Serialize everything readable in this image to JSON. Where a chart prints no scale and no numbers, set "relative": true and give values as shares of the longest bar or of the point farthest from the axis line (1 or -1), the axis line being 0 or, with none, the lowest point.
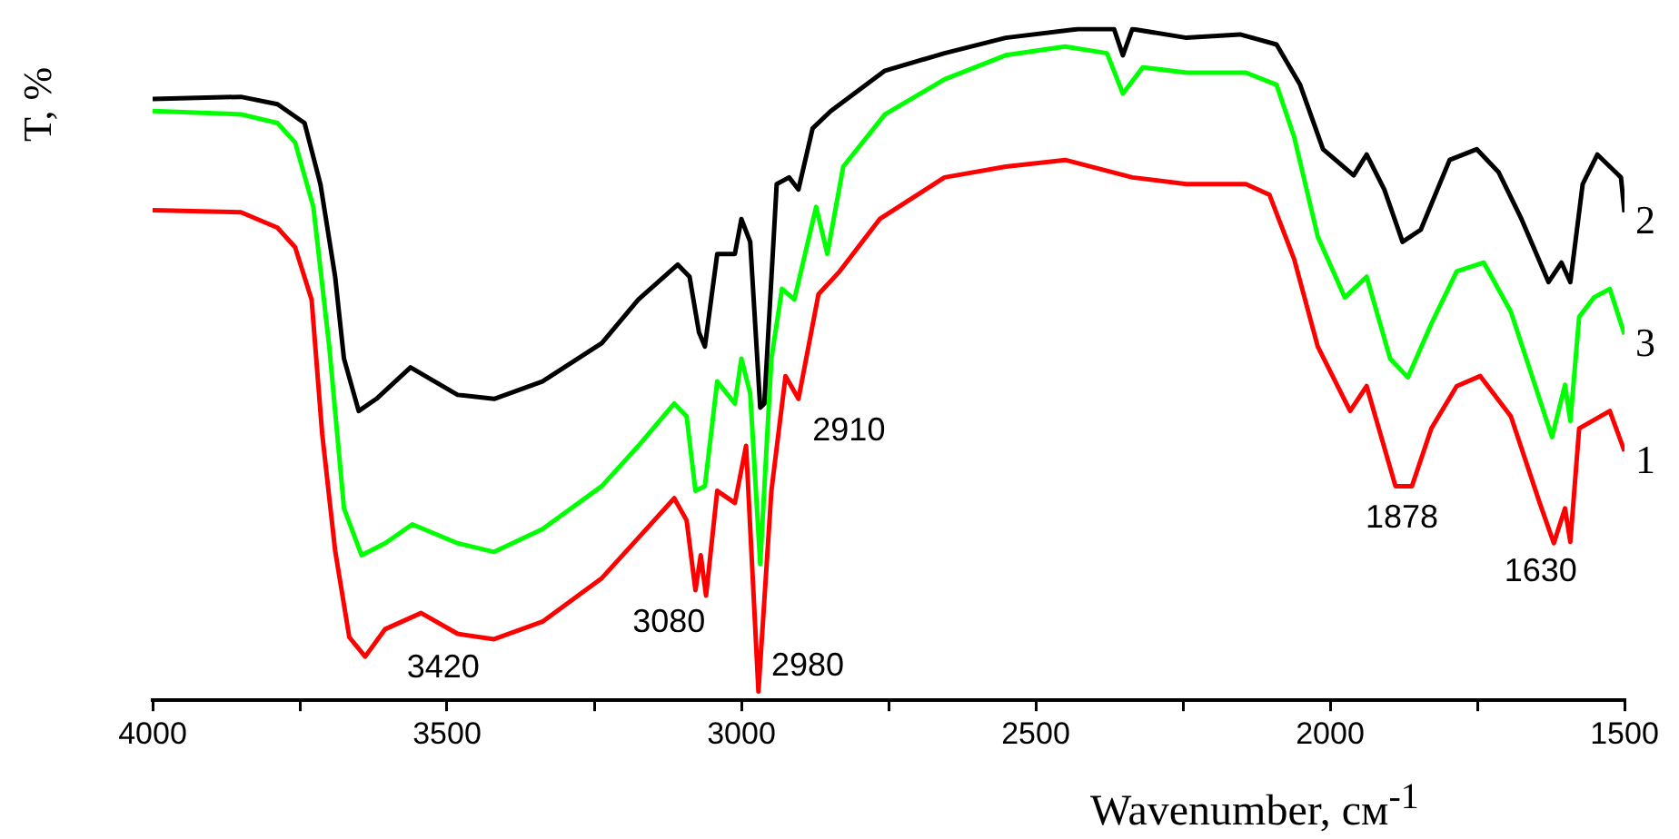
{
  "chart_data": {
    "type": "line",
    "relative": true,
    "xlabel": "Wavenumber, см$^{-1}$",
    "ylabel": "T, %",
    "xlim": [
      4000,
      1500
    ],
    "xticks": [
      4000,
      {
        "value": 3750,
        "label": null
      },
      3500,
      {
        "value": 3250,
        "label": null
      },
      3000,
      {
        "value": 2750,
        "label": null
      },
      2500,
      {
        "value": 2250,
        "label": null
      },
      2000,
      {
        "value": 1750,
        "label": null
      },
      1500
    ],
    "grid": false,
    "legend": false,
    "marker": "none",
    "line_style": "solid",
    "series": [
      {
        "name": "1",
        "color": "#ff0000",
        "x": [
          4000,
          3850,
          3788,
          3758,
          3730,
          3712,
          3690,
          3666,
          3639,
          3605,
          3544,
          3482,
          3420,
          3338,
          3237,
          3175,
          3114,
          3093,
          3078,
          3069,
          3060,
          3041,
          3011,
          2992,
          2971,
          2949,
          2925,
          2903,
          2869,
          2833,
          2765,
          2655,
          2551,
          2450,
          2336,
          2244,
          2143,
          2103,
          2061,
          2021,
          1966,
          1938,
          1889,
          1861,
          1828,
          1785,
          1745,
          1693,
          1644,
          1620,
          1601,
          1592,
          1577,
          1525,
          1500
        ],
        "values": [
          0.73,
          0.727,
          0.704,
          0.675,
          0.597,
          0.397,
          0.223,
          0.094,
          0.065,
          0.106,
          0.13,
          0.099,
          0.091,
          0.117,
          0.182,
          0.242,
          0.301,
          0.268,
          0.164,
          0.216,
          0.156,
          0.312,
          0.294,
          0.379,
          0.013,
          0.312,
          0.483,
          0.449,
          0.605,
          0.639,
          0.717,
          0.779,
          0.795,
          0.805,
          0.779,
          0.769,
          0.769,
          0.753,
          0.657,
          0.527,
          0.431,
          0.468,
          0.319,
          0.319,
          0.405,
          0.468,
          0.483,
          0.423,
          0.294,
          0.234,
          0.286,
          0.236,
          0.405,
          0.431,
          0.371
        ]
      },
      {
        "name": "2",
        "color": "#000000",
        "x": [
          4000,
          3850,
          3788,
          3742,
          3715,
          3690,
          3675,
          3650,
          3620,
          3562,
          3482,
          3420,
          3338,
          3237,
          3175,
          3108,
          3088,
          3072,
          3062,
          3041,
          3011,
          3000,
          2985,
          2968,
          2961,
          2940,
          2919,
          2903,
          2879,
          2848,
          2756,
          2655,
          2551,
          2428,
          2367,
          2352,
          2336,
          2244,
          2153,
          2091,
          2051,
          2012,
          1960,
          1938,
          1908,
          1877,
          1846,
          1797,
          1751,
          1714,
          1675,
          1629,
          1607,
          1592,
          1571,
          1546,
          1506,
          1500
        ],
        "values": [
          0.896,
          0.899,
          0.888,
          0.86,
          0.769,
          0.631,
          0.509,
          0.431,
          0.449,
          0.496,
          0.455,
          0.449,
          0.475,
          0.532,
          0.597,
          0.649,
          0.631,
          0.548,
          0.527,
          0.665,
          0.665,
          0.717,
          0.683,
          0.436,
          0.442,
          0.769,
          0.779,
          0.761,
          0.852,
          0.878,
          0.938,
          0.964,
          0.987,
          1,
          1,
          0.961,
          1,
          0.987,
          0.992,
          0.977,
          0.917,
          0.821,
          0.782,
          0.813,
          0.761,
          0.683,
          0.701,
          0.805,
          0.821,
          0.787,
          0.717,
          0.623,
          0.652,
          0.623,
          0.769,
          0.813,
          0.779,
          0.727
        ]
      },
      {
        "name": "3",
        "color": "#00ff00",
        "x": [
          4000,
          3850,
          3788,
          3758,
          3727,
          3700,
          3675,
          3645,
          3605,
          3559,
          3482,
          3420,
          3338,
          3237,
          3175,
          3114,
          3093,
          3078,
          3062,
          3041,
          3011,
          3000,
          2985,
          2968,
          2949,
          2931,
          2910,
          2873,
          2854,
          2827,
          2756,
          2655,
          2551,
          2450,
          2379,
          2352,
          2318,
          2244,
          2143,
          2091,
          2061,
          2021,
          1975,
          1938,
          1898,
          1868,
          1828,
          1785,
          1739,
          1693,
          1623,
          1601,
          1592,
          1577,
          1552,
          1525,
          1500
        ],
        "values": [
          0.878,
          0.873,
          0.86,
          0.831,
          0.735,
          0.527,
          0.286,
          0.216,
          0.234,
          0.262,
          0.234,
          0.221,
          0.255,
          0.319,
          0.379,
          0.442,
          0.423,
          0.312,
          0.319,
          0.475,
          0.442,
          0.509,
          0.457,
          0.203,
          0.509,
          0.613,
          0.597,
          0.735,
          0.665,
          0.795,
          0.873,
          0.925,
          0.961,
          0.974,
          0.964,
          0.904,
          0.943,
          0.935,
          0.935,
          0.917,
          0.839,
          0.691,
          0.6,
          0.631,
          0.509,
          0.481,
          0.561,
          0.639,
          0.652,
          0.579,
          0.392,
          0.47,
          0.416,
          0.571,
          0.6,
          0.613,
          0.545
        ]
      }
    ],
    "annotations": [
      {
        "text": "3420",
        "x": 3420,
        "y": 0.091
      },
      {
        "text": "3080",
        "x": 3080,
        "y": 0.164
      },
      {
        "text": "2980",
        "x": 2980,
        "y": 0.013
      },
      {
        "text": "2910",
        "x": 2910,
        "y": 0.449
      },
      {
        "text": "1878",
        "x": 1878,
        "y": 0.319
      },
      {
        "text": "1630",
        "x": 1630,
        "y": 0.234
      }
    ]
  }
}
